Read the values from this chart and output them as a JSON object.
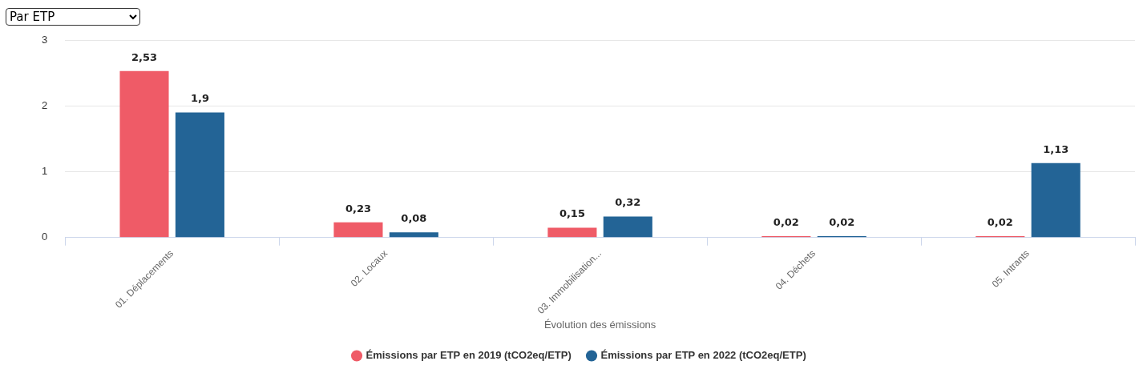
{
  "chart_data": {
    "type": "bar",
    "annotations": [
      "Par ETP"
    ],
    "xlabel": "Évolution des émissions",
    "categories": [
      "01. Déplacements",
      "02. Locaux",
      "03. Immobilisation...",
      "04. Déchets",
      "05. Intrants"
    ],
    "series": [
      {
        "name": "Émissions par ETP en 2019 (tCO2eq/ETP)",
        "color": "#ef5b67",
        "values": [
          2.53,
          0.23,
          0.15,
          0.02,
          0.02
        ],
        "value_labels": [
          "2,53",
          "0,23",
          "0,15",
          "0,02",
          "0,02"
        ]
      },
      {
        "name": "Émissions par ETP en 2022 (tCO2eq/ETP)",
        "color": "#236496",
        "values": [
          1.9,
          0.08,
          0.32,
          0.02,
          1.13
        ],
        "value_labels": [
          "1,9",
          "0,08",
          "0,32",
          "0,02",
          "1,13"
        ]
      }
    ],
    "ylim": [
      0,
      3
    ],
    "yticks": [
      0,
      1,
      2,
      3
    ],
    "grid": "y",
    "legend": "bottom"
  }
}
